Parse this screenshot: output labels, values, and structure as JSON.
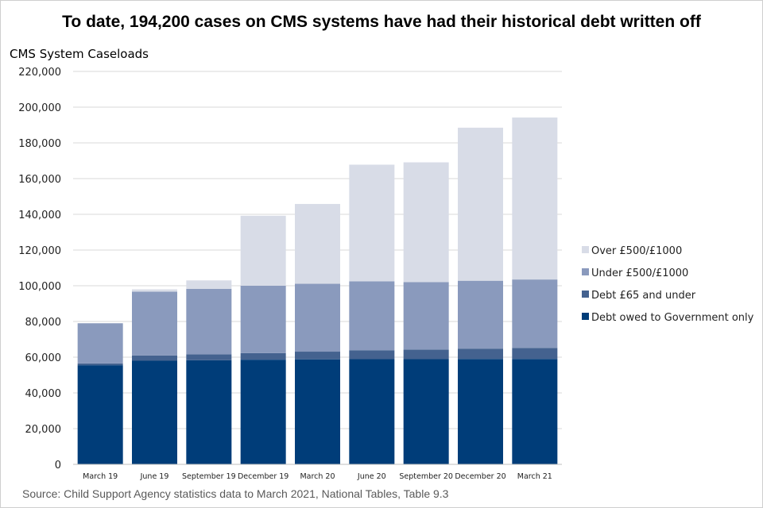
{
  "title": "To date, 194,200 cases on CMS systems have had their historical debt written off",
  "source": "Source: Child Support Agency statistics data to March 2021, National Tables, Table 9.3",
  "chart_data": {
    "type": "bar",
    "stacked": true,
    "title": "To date, 194,200 cases on CMS systems have had their historical debt written off",
    "xlabel": "",
    "ylabel": "CMS System Caseloads",
    "ylim": [
      0,
      220000
    ],
    "yticks": [
      0,
      20000,
      40000,
      60000,
      80000,
      100000,
      120000,
      140000,
      160000,
      180000,
      200000,
      220000
    ],
    "ytick_labels": [
      "0",
      "20,000",
      "40,000",
      "60,000",
      "80,000",
      "100,000",
      "120,000",
      "140,000",
      "160,000",
      "180,000",
      "200,000",
      "220,000"
    ],
    "grid": true,
    "legend_position": "right",
    "categories": [
      "March 19",
      "June 19",
      "September 19",
      "December 19",
      "March 20",
      "June 20",
      "September 20",
      "December 20",
      "March 21"
    ],
    "series": [
      {
        "name": "Debt owed to Government only",
        "color": "#003d79",
        "values": [
          55500,
          58000,
          58300,
          58600,
          58800,
          58900,
          58900,
          59000,
          59000
        ]
      },
      {
        "name": "Debt £65 and under",
        "color": "#44628f",
        "values": [
          1000,
          3000,
          3300,
          3700,
          4300,
          5000,
          5300,
          5800,
          6200
        ]
      },
      {
        "name": "Under £500/£1000",
        "color": "#8a9abd",
        "values": [
          22500,
          35700,
          36700,
          37700,
          38000,
          38600,
          37800,
          38000,
          38300
        ]
      },
      {
        "name": "Over £500/£1000",
        "color": "#d8dce7",
        "values": [
          0,
          1300,
          4700,
          39200,
          44700,
          65300,
          67100,
          85700,
          90700
        ]
      }
    ]
  }
}
